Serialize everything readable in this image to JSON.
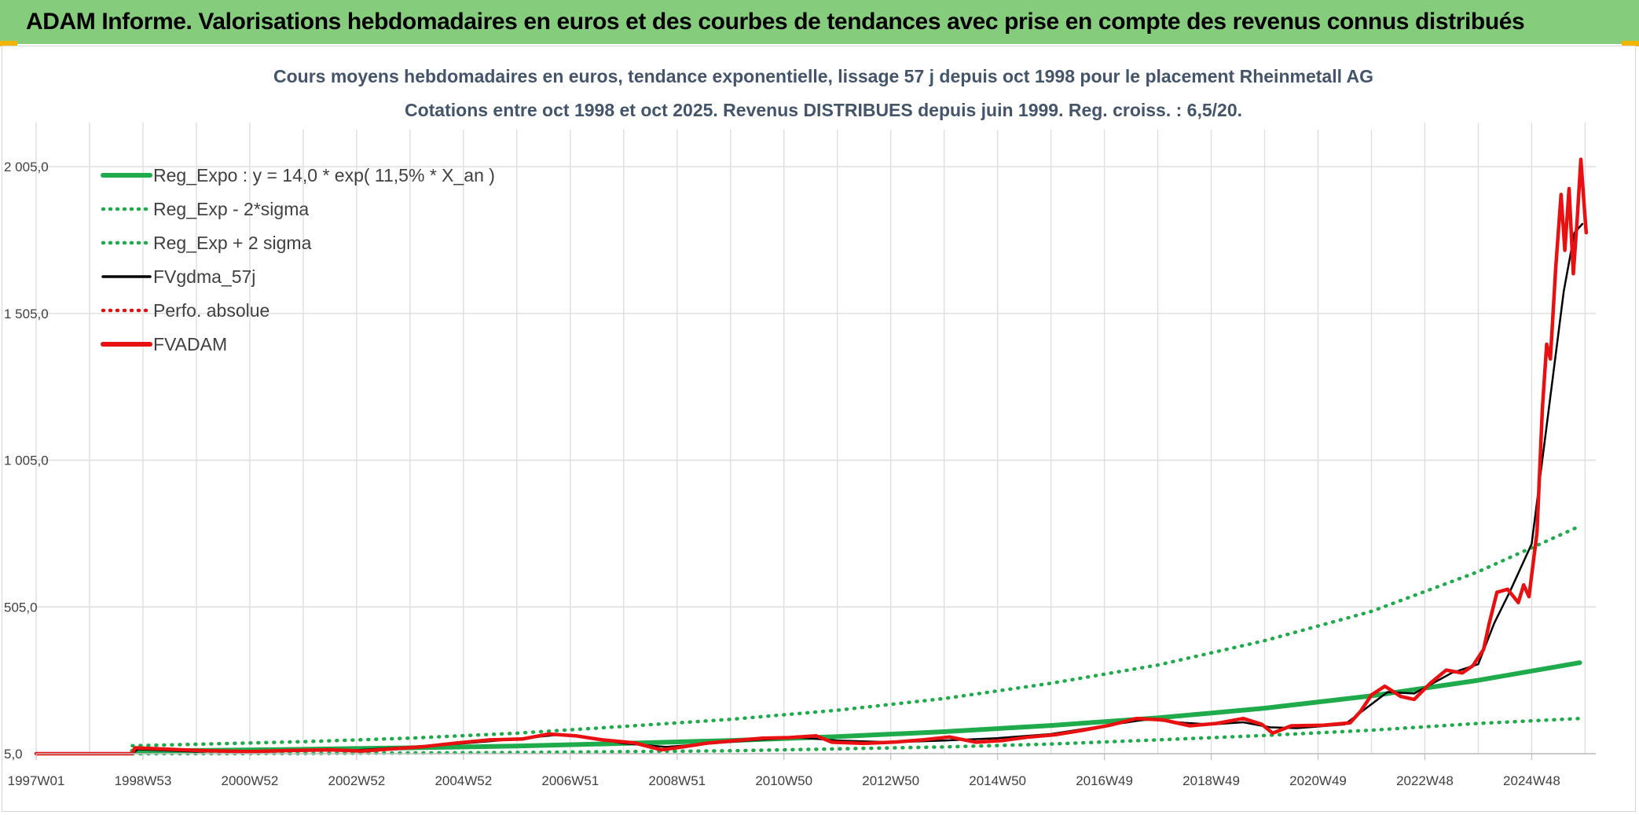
{
  "banner": {
    "title": "ADAM Informe. Valorisations hebdomadaires en euros et des courbes de tendances avec prise en compte des revenus connus distribués"
  },
  "colors": {
    "banner_bg": "#86cc7d",
    "reg_expo": "#1faa4b",
    "sigma": "#1faa4b",
    "fvgdma": "#000000",
    "perfo": "#e01010",
    "fvadam": "#e81010",
    "grid": "#dedede",
    "title_text": "#44546a"
  },
  "chart_data": {
    "type": "line",
    "title": "Cours moyens hebdomadaires en euros, tendance exponentielle, lissage 57 j depuis oct 1998 pour le placement Rheinmetall AG",
    "subtitle": "Cotations entre oct 1998 et oct 2025. Revenus DISTRIBUES depuis juin 1999. Reg. croiss. : 6,5/20.",
    "xlabel": "",
    "ylabel": "",
    "x_range": [
      1997.0,
      2026.2
    ],
    "ylim": [
      5,
      2155
    ],
    "y_ticks": [
      5,
      505,
      1005,
      1505,
      2005
    ],
    "y_tick_labels": [
      "5,0",
      "505,0",
      "1 005,0",
      "1 505,0",
      "2 005,0"
    ],
    "x_ticks": [
      1997.0,
      1999.0,
      2001.0,
      2003.0,
      2005.0,
      2007.0,
      2009.0,
      2011.0,
      2013.0,
      2015.0,
      2017.0,
      2019.0,
      2021.0,
      2023.0,
      2025.0
    ],
    "x_tick_labels": [
      "1997W01",
      "1998W53",
      "2000W52",
      "2002W52",
      "2004W52",
      "2006W51",
      "2008W51",
      "2010W50",
      "2012W50",
      "2014W50",
      "2016W49",
      "2018W49",
      "2020W49",
      "2022W48",
      "2024W48"
    ],
    "legend_position": "top-left",
    "series": [
      {
        "name": "Reg_Expo : y = 14,0 * exp( 11,5% *  X_an )",
        "style": "solid-thick",
        "color": "#1faa4b",
        "points": [
          [
            1998.8,
            14
          ],
          [
            2000,
            16
          ],
          [
            2002,
            20
          ],
          [
            2004,
            25
          ],
          [
            2006,
            31
          ],
          [
            2008,
            40
          ],
          [
            2010,
            50
          ],
          [
            2012,
            63
          ],
          [
            2014,
            80
          ],
          [
            2016,
            101
          ],
          [
            2018,
            127
          ],
          [
            2020,
            160
          ],
          [
            2022,
            202
          ],
          [
            2024,
            255
          ],
          [
            2025.9,
            315
          ]
        ]
      },
      {
        "name": "Reg_Exp - 2*sigma",
        "style": "dotted",
        "color": "#1faa4b",
        "points": [
          [
            1998.8,
            5
          ],
          [
            2002,
            6
          ],
          [
            2006,
            9
          ],
          [
            2010,
            15
          ],
          [
            2014,
            28
          ],
          [
            2016,
            38
          ],
          [
            2018,
            52
          ],
          [
            2020,
            67
          ],
          [
            2022,
            85
          ],
          [
            2024,
            108
          ],
          [
            2025.9,
            125
          ]
        ]
      },
      {
        "name": "Reg_Exp + 2 sigma",
        "style": "dotted",
        "color": "#1faa4b",
        "points": [
          [
            1998.8,
            32
          ],
          [
            2000,
            37
          ],
          [
            2002,
            46
          ],
          [
            2004,
            58
          ],
          [
            2006,
            75
          ],
          [
            2008,
            98
          ],
          [
            2010,
            122
          ],
          [
            2012,
            153
          ],
          [
            2014,
            193
          ],
          [
            2016,
            245
          ],
          [
            2018,
            307
          ],
          [
            2020,
            390
          ],
          [
            2022,
            490
          ],
          [
            2024,
            625
          ],
          [
            2025.9,
            780
          ]
        ]
      },
      {
        "name": "FVgdma_57j",
        "style": "solid",
        "color": "#000000",
        "points": [
          [
            1997.0,
            5
          ],
          [
            1998.8,
            5
          ],
          [
            1998.9,
            20
          ],
          [
            2000,
            12
          ],
          [
            2002,
            17
          ],
          [
            2003,
            17
          ],
          [
            2004,
            28
          ],
          [
            2005,
            40
          ],
          [
            2006,
            55
          ],
          [
            2006.8,
            70
          ],
          [
            2007.5,
            55
          ],
          [
            2008,
            40
          ],
          [
            2008.8,
            28
          ],
          [
            2009.5,
            38
          ],
          [
            2010.5,
            52
          ],
          [
            2011.3,
            60
          ],
          [
            2012,
            50
          ],
          [
            2013,
            44
          ],
          [
            2014,
            50
          ],
          [
            2015,
            58
          ],
          [
            2016,
            72
          ],
          [
            2017,
            100
          ],
          [
            2017.8,
            122
          ],
          [
            2018.5,
            110
          ],
          [
            2019,
            105
          ],
          [
            2019.6,
            112
          ],
          [
            2020.1,
            95
          ],
          [
            2020.6,
            92
          ],
          [
            2021.5,
            105
          ],
          [
            2022.3,
            215
          ],
          [
            2022.8,
            210
          ],
          [
            2023.5,
            280
          ],
          [
            2024,
            310
          ],
          [
            2024.3,
            450
          ],
          [
            2024.6,
            560
          ],
          [
            2025.0,
            720
          ],
          [
            2025.3,
            1150
          ],
          [
            2025.6,
            1580
          ],
          [
            2025.8,
            1780
          ],
          [
            2025.95,
            1810
          ]
        ]
      },
      {
        "name": "Perfo. absolue",
        "style": "dotted",
        "color": "#e01010",
        "points": []
      },
      {
        "name": "FVADAM",
        "style": "solid-thick",
        "color": "#e81010",
        "points": [
          [
            1997.0,
            5
          ],
          [
            1998.8,
            5
          ],
          [
            1998.85,
            25
          ],
          [
            1999.5,
            20
          ],
          [
            2000.2,
            15
          ],
          [
            2001,
            12
          ],
          [
            2001.8,
            16
          ],
          [
            2002.5,
            18
          ],
          [
            2003.1,
            14
          ],
          [
            2003.7,
            22
          ],
          [
            2004.3,
            30
          ],
          [
            2004.9,
            42
          ],
          [
            2005.5,
            52
          ],
          [
            2006.1,
            55
          ],
          [
            2006.6,
            72
          ],
          [
            2007.1,
            66
          ],
          [
            2007.6,
            52
          ],
          [
            2008.2,
            42
          ],
          [
            2008.7,
            18
          ],
          [
            2009.1,
            28
          ],
          [
            2009.6,
            42
          ],
          [
            2010.1,
            50
          ],
          [
            2010.6,
            58
          ],
          [
            2011.1,
            60
          ],
          [
            2011.6,
            66
          ],
          [
            2011.9,
            44
          ],
          [
            2012.5,
            40
          ],
          [
            2013.1,
            45
          ],
          [
            2013.6,
            52
          ],
          [
            2014.1,
            62
          ],
          [
            2014.6,
            44
          ],
          [
            2015.1,
            50
          ],
          [
            2015.6,
            62
          ],
          [
            2016.1,
            70
          ],
          [
            2016.6,
            85
          ],
          [
            2017.1,
            102
          ],
          [
            2017.6,
            125
          ],
          [
            2018.1,
            120
          ],
          [
            2018.6,
            100
          ],
          [
            2019.1,
            108
          ],
          [
            2019.6,
            125
          ],
          [
            2019.95,
            105
          ],
          [
            2020.15,
            75
          ],
          [
            2020.5,
            100
          ],
          [
            2021.1,
            102
          ],
          [
            2021.6,
            110
          ],
          [
            2021.8,
            150
          ],
          [
            2022.0,
            205
          ],
          [
            2022.25,
            235
          ],
          [
            2022.55,
            200
          ],
          [
            2022.8,
            190
          ],
          [
            2023.1,
            245
          ],
          [
            2023.4,
            290
          ],
          [
            2023.7,
            280
          ],
          [
            2023.9,
            305
          ],
          [
            2024.1,
            360
          ],
          [
            2024.2,
            445
          ],
          [
            2024.35,
            555
          ],
          [
            2024.55,
            565
          ],
          [
            2024.75,
            520
          ],
          [
            2024.85,
            580
          ],
          [
            2024.95,
            540
          ],
          [
            2025.1,
            760
          ],
          [
            2025.2,
            1180
          ],
          [
            2025.28,
            1400
          ],
          [
            2025.35,
            1350
          ],
          [
            2025.45,
            1660
          ],
          [
            2025.55,
            1910
          ],
          [
            2025.62,
            1720
          ],
          [
            2025.7,
            1930
          ],
          [
            2025.78,
            1640
          ],
          [
            2025.85,
            1820
          ],
          [
            2025.92,
            2030
          ],
          [
            2025.98,
            1880
          ],
          [
            2026.02,
            1780
          ]
        ]
      }
    ]
  }
}
